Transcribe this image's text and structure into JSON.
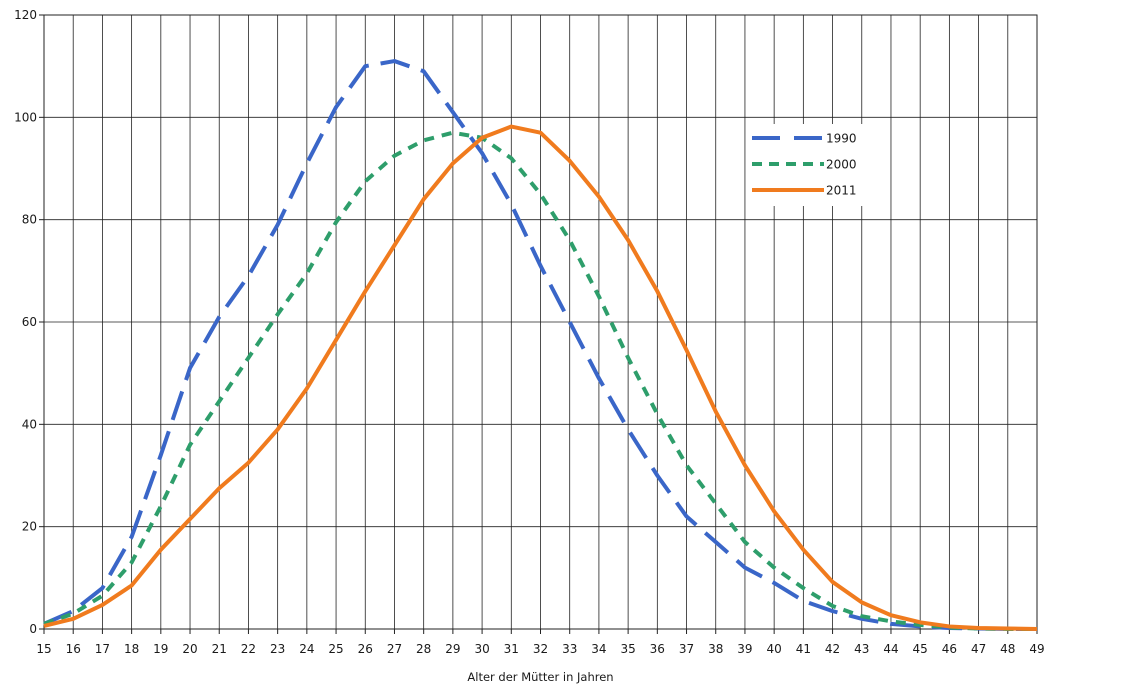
{
  "chart_data": {
    "type": "line",
    "title": "",
    "xlabel": "Alter der Mütter in Jahren",
    "ylabel": "",
    "xlim": [
      15,
      49
    ],
    "ylim": [
      0,
      120
    ],
    "y_ticks": [
      0,
      20,
      40,
      60,
      80,
      100,
      120
    ],
    "grid": true,
    "legend_position": "top-right",
    "x": [
      15,
      16,
      17,
      18,
      19,
      20,
      21,
      22,
      23,
      24,
      25,
      26,
      27,
      28,
      29,
      30,
      31,
      32,
      33,
      34,
      35,
      36,
      37,
      38,
      39,
      40,
      41,
      42,
      43,
      44,
      45,
      46,
      47,
      48,
      49
    ],
    "series": [
      {
        "name": "1990",
        "color": "#3a66c8",
        "style": "long-dash",
        "values": [
          1,
          3.5,
          8,
          18,
          34,
          51,
          61,
          69,
          79,
          91,
          102,
          110,
          111,
          109,
          101,
          93,
          83,
          71,
          60,
          49,
          39,
          30,
          22,
          17,
          12,
          9,
          5.5,
          3.5,
          2,
          1,
          0.5,
          0.2,
          0.1,
          0,
          0
        ]
      },
      {
        "name": "2000",
        "color": "#2e9e6b",
        "style": "short-dash",
        "values": [
          1,
          3,
          6.5,
          13,
          24,
          36,
          44.5,
          53,
          61.5,
          69.5,
          79.5,
          87.5,
          92.5,
          95.5,
          97,
          96,
          92,
          85,
          76,
          65,
          53,
          42,
          32,
          24.5,
          17,
          12,
          8,
          4.5,
          2.5,
          1.5,
          0.8,
          0.3,
          0.1,
          0,
          0
        ]
      },
      {
        "name": "2011",
        "color": "#f07b1e",
        "style": "solid",
        "values": [
          0.6,
          2,
          4.7,
          8.5,
          15.5,
          21.5,
          27.5,
          32.5,
          39,
          47,
          56.5,
          66,
          75,
          84,
          91,
          96,
          98.2,
          97,
          91.5,
          84.5,
          76,
          66,
          54.5,
          42.5,
          32,
          23,
          15.5,
          9.2,
          5.2,
          2.7,
          1.3,
          0.5,
          0.2,
          0.1,
          0
        ]
      }
    ]
  }
}
